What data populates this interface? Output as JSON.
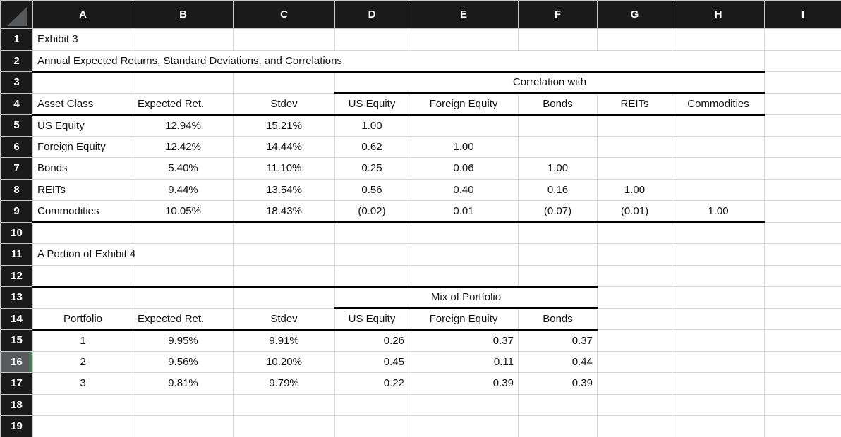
{
  "columns": [
    "A",
    "B",
    "C",
    "D",
    "E",
    "F",
    "G",
    "H",
    "I"
  ],
  "row_numbers": [
    "1",
    "2",
    "3",
    "4",
    "5",
    "6",
    "7",
    "8",
    "9",
    "10",
    "11",
    "12",
    "13",
    "14",
    "15",
    "16",
    "17",
    "18",
    "19"
  ],
  "selection": {
    "row": 16
  },
  "colors": {
    "header_bg": "#1a1a1a",
    "grid_line": "#d6d6d6",
    "rule_line": "#000000",
    "selected_row_header_bg": "#595a5c",
    "selection_accent_green": "#4a7a56",
    "corner_triangle": "#58595b"
  },
  "icons": {
    "corner": "select-all-triangle-icon"
  },
  "cellmap": {
    "A1": {
      "text": "Exhibit 3",
      "align": "left",
      "bold": true
    },
    "A2": {
      "text": "Annual Expected Returns, Standard Deviations, and Correlations",
      "align": "left",
      "bold": true,
      "span": 8
    },
    "D3": {
      "text": "Correlation with",
      "align": "center",
      "span": 5
    },
    "A4": {
      "text": "Asset Class",
      "align": "left"
    },
    "B4": {
      "text": "Expected Ret.",
      "align": "left"
    },
    "C4": {
      "text": "Stdev",
      "align": "center"
    },
    "D4": {
      "text": "US Equity",
      "align": "center"
    },
    "E4": {
      "text": "Foreign Equity",
      "align": "center"
    },
    "F4": {
      "text": "Bonds",
      "align": "center"
    },
    "G4": {
      "text": "REITs",
      "align": "center"
    },
    "H4": {
      "text": "Commodities",
      "align": "center"
    },
    "A5": {
      "text": "US Equity",
      "align": "left"
    },
    "B5": {
      "text": "12.94%"
    },
    "C5": {
      "text": "15.21%"
    },
    "D5": {
      "text": "1.00"
    },
    "A6": {
      "text": "Foreign Equity",
      "align": "left"
    },
    "B6": {
      "text": "12.42%"
    },
    "C6": {
      "text": "14.44%"
    },
    "D6": {
      "text": "0.62"
    },
    "E6": {
      "text": "1.00"
    },
    "A7": {
      "text": "Bonds",
      "align": "left"
    },
    "B7": {
      "text": "5.40%"
    },
    "C7": {
      "text": "11.10%"
    },
    "D7": {
      "text": "0.25"
    },
    "E7": {
      "text": "0.06"
    },
    "F7": {
      "text": "1.00"
    },
    "A8": {
      "text": "REITs",
      "align": "left"
    },
    "B8": {
      "text": "9.44%"
    },
    "C8": {
      "text": "13.54%"
    },
    "D8": {
      "text": "0.56"
    },
    "E8": {
      "text": "0.40"
    },
    "F8": {
      "text": "0.16"
    },
    "G8": {
      "text": "1.00"
    },
    "A9": {
      "text": "Commodities",
      "align": "left"
    },
    "B9": {
      "text": "10.05%"
    },
    "C9": {
      "text": "18.43%"
    },
    "D9": {
      "text": "(0.02)"
    },
    "E9": {
      "text": "0.01"
    },
    "F9": {
      "text": "(0.07)"
    },
    "G9": {
      "text": "(0.01)"
    },
    "H9": {
      "text": "1.00"
    },
    "A11": {
      "text": "A Portion of Exhibit 4",
      "align": "left",
      "bold": true,
      "span": 2
    },
    "D13": {
      "text": "Mix of Portfolio",
      "align": "center",
      "span": 3
    },
    "A14": {
      "text": "Portfolio",
      "align": "center"
    },
    "B14": {
      "text": "Expected Ret.",
      "align": "left"
    },
    "C14": {
      "text": "Stdev",
      "align": "center"
    },
    "D14": {
      "text": "US Equity",
      "align": "center"
    },
    "E14": {
      "text": "Foreign Equity",
      "align": "center"
    },
    "F14": {
      "text": "Bonds",
      "align": "center"
    },
    "A15": {
      "text": "1"
    },
    "B15": {
      "text": "9.95%"
    },
    "C15": {
      "text": "9.91%"
    },
    "D15": {
      "text": "0.26",
      "align": "right"
    },
    "E15": {
      "text": "0.37",
      "align": "right"
    },
    "F15": {
      "text": "0.37",
      "align": "right"
    },
    "A16": {
      "text": "2"
    },
    "B16": {
      "text": "9.56%"
    },
    "C16": {
      "text": "10.20%"
    },
    "D16": {
      "text": "0.45",
      "align": "right"
    },
    "E16": {
      "text": "0.11",
      "align": "right"
    },
    "F16": {
      "text": "0.44",
      "align": "right"
    },
    "A17": {
      "text": "3"
    },
    "B17": {
      "text": "9.81%"
    },
    "C17": {
      "text": "9.79%"
    },
    "D17": {
      "text": "0.22",
      "align": "right"
    },
    "E17": {
      "text": "0.39",
      "align": "right"
    },
    "F17": {
      "text": "0.39",
      "align": "right"
    }
  },
  "borders": [
    {
      "row": 2,
      "from": "A",
      "to": "H",
      "weight": 2
    },
    {
      "row": 3,
      "from": "D",
      "to": "H",
      "weight": 3
    },
    {
      "row": 4,
      "from": "A",
      "to": "H",
      "weight": 2
    },
    {
      "row": 9,
      "from": "A",
      "to": "H",
      "weight": 3
    },
    {
      "row": 12,
      "from": "A",
      "to": "F",
      "weight": 2
    },
    {
      "row": 13,
      "from": "D",
      "to": "F",
      "weight": 2
    },
    {
      "row": 14,
      "from": "A",
      "to": "F",
      "weight": 2
    }
  ]
}
